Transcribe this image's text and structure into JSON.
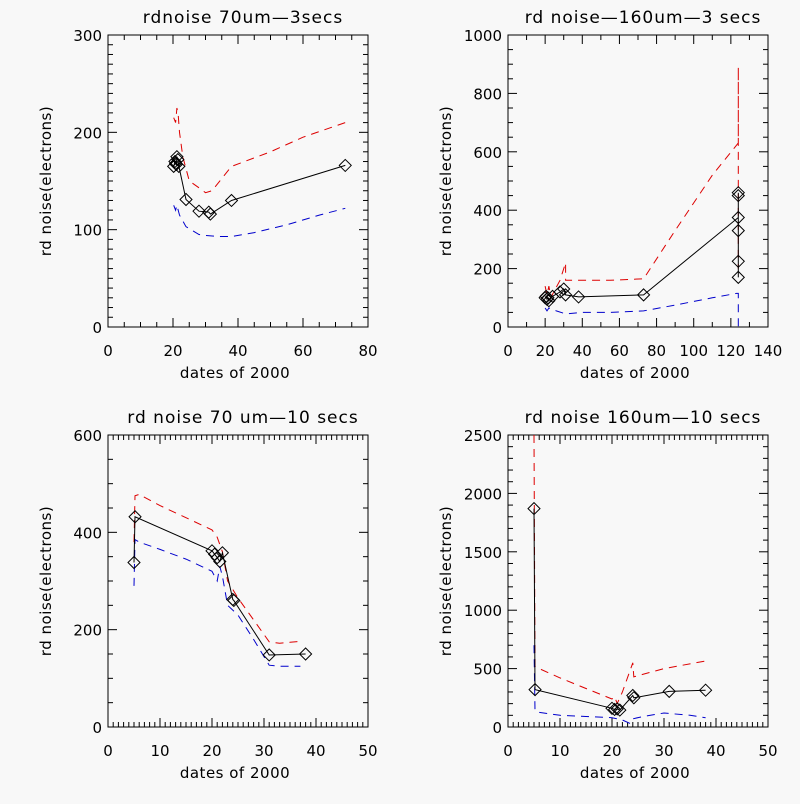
{
  "figure": {
    "background": "#f8f8f8",
    "colors": {
      "measured": "#000000",
      "upper": "#dd0000",
      "lower": "#0000cc"
    }
  },
  "chart_data": [
    {
      "type": "line",
      "title": "rdnoise 70um—3secs",
      "xlabel": "dates of 2000",
      "ylabel": "rd noise(electrons)",
      "xlim": [
        0,
        80
      ],
      "ylim": [
        0,
        300
      ],
      "xticks": [
        0,
        20,
        40,
        60,
        80
      ],
      "xtick_labels": [
        "0",
        "20",
        "40",
        "60",
        "80"
      ],
      "yticks": [
        0,
        100,
        200,
        300
      ],
      "ytick_labels": [
        "0",
        "100",
        "200",
        "300"
      ],
      "x_minor": 4,
      "y_minor": 10,
      "grid": false,
      "legend": "none",
      "series": [
        {
          "name": "measured",
          "style": "solid-diamond",
          "x": [
            20.2,
            20.6,
            20.8,
            21.0,
            21.2,
            21.5,
            21.8,
            24.0,
            28.0,
            31.0,
            31.5,
            38.0,
            73.0
          ],
          "y": [
            165,
            170,
            168,
            167,
            175,
            172,
            165,
            131,
            119,
            118,
            116,
            130,
            166
          ]
        },
        {
          "name": "upper",
          "style": "dashed",
          "x": [
            20.2,
            20.8,
            21.2,
            21.6,
            22.0,
            23.0,
            25.0,
            28.0,
            30.0,
            32.0,
            38.0,
            50.0,
            60.0,
            73.0
          ],
          "y": [
            215,
            210,
            225,
            218,
            200,
            175,
            150,
            143,
            138,
            140,
            165,
            180,
            195,
            210
          ]
        },
        {
          "name": "lower",
          "style": "dashed",
          "x": [
            20.2,
            20.8,
            21.2,
            22.0,
            24.0,
            28.0,
            30.0,
            34.0,
            38.0,
            45.0,
            55.0,
            65.0,
            73.0
          ],
          "y": [
            125,
            120,
            125,
            115,
            103,
            95,
            94,
            93,
            93,
            97,
            105,
            115,
            122
          ]
        }
      ]
    },
    {
      "type": "line",
      "title": "rd noise—160um—3 secs",
      "xlabel": "dates of 2000",
      "ylabel": "rd noise(electrons)",
      "xlim": [
        0,
        140
      ],
      "ylim": [
        0,
        1000
      ],
      "xticks": [
        0,
        20,
        40,
        60,
        80,
        100,
        120,
        140
      ],
      "xtick_labels": [
        "0",
        "20",
        "40",
        "60",
        "80",
        "100",
        "120",
        "140"
      ],
      "yticks": [
        0,
        200,
        400,
        600,
        800,
        1000
      ],
      "ytick_labels": [
        "0",
        "200",
        "400",
        "600",
        "800",
        "1000"
      ],
      "x_minor": 2,
      "y_minor": 4,
      "grid": false,
      "legend": "none",
      "series": [
        {
          "name": "measured",
          "style": "solid-diamond",
          "x": [
            20.0,
            20.5,
            21.0,
            21.5,
            22.0,
            24.0,
            28.0,
            30.0,
            31.0,
            38.0,
            73.0,
            124.0,
            124.0,
            124.0,
            124.0,
            124.0,
            124.0
          ],
          "y": [
            100,
            105,
            95,
            100,
            90,
            105,
            120,
            130,
            110,
            103,
            110,
            375,
            330,
            460,
            450,
            225,
            170
          ]
        },
        {
          "name": "upper",
          "style": "dashed",
          "x": [
            20.0,
            21.0,
            22.0,
            23.0,
            28.0,
            31.0,
            31.0,
            40.0,
            55.0,
            73.0,
            90.0,
            110.0,
            124.0,
            124.0,
            124.0
          ],
          "y": [
            140,
            110,
            140,
            100,
            160,
            220,
            160,
            160,
            160,
            165,
            330,
            520,
            630,
            890,
            200
          ]
        },
        {
          "name": "lower",
          "style": "dashed",
          "x": [
            20.0,
            21.0,
            22.0,
            26.0,
            31.0,
            40.0,
            55.0,
            73.0,
            90.0,
            110.0,
            123.0,
            124.0,
            124.0
          ],
          "y": [
            65,
            55,
            65,
            55,
            45,
            50,
            50,
            55,
            75,
            100,
            115,
            115,
            0
          ]
        }
      ]
    },
    {
      "type": "line",
      "title": "rd noise 70 um—10 secs",
      "xlabel": "dates of 2000",
      "ylabel": "rd noise(electrons)",
      "xlim": [
        0,
        50
      ],
      "ylim": [
        0,
        600
      ],
      "xticks": [
        0,
        10,
        20,
        30,
        40,
        50
      ],
      "xtick_labels": [
        "0",
        "10",
        "20",
        "30",
        "40",
        "50"
      ],
      "yticks": [
        0,
        200,
        400,
        600
      ],
      "ytick_labels": [
        "0",
        "200",
        "400",
        "600"
      ],
      "x_minor": 10,
      "y_minor": 4,
      "grid": false,
      "legend": "none",
      "series": [
        {
          "name": "measured",
          "style": "solid-diamond",
          "x": [
            5.0,
            5.2,
            20.0,
            20.5,
            21.0,
            21.5,
            22.0,
            24.0,
            24.2,
            31.0,
            38.0
          ],
          "y": [
            338,
            432,
            362,
            355,
            348,
            340,
            358,
            262,
            260,
            148,
            150
          ]
        },
        {
          "name": "upper",
          "style": "dashed",
          "x": [
            5.0,
            5.2,
            6.0,
            10.0,
            15.0,
            20.0,
            21.0,
            22.0,
            23.0,
            25.0,
            28.0,
            31.0,
            33.0,
            35.0,
            37.0
          ],
          "y": [
            380,
            475,
            478,
            455,
            430,
            405,
            390,
            360,
            300,
            265,
            220,
            175,
            172,
            174,
            176
          ]
        },
        {
          "name": "lower",
          "style": "dashed",
          "x": [
            5.0,
            5.2,
            6.0,
            10.0,
            15.0,
            20.0,
            21.0,
            21.5,
            22.0,
            23.0,
            25.0,
            28.0,
            31.0,
            33.0,
            37.0
          ],
          "y": [
            290,
            385,
            380,
            365,
            345,
            320,
            300,
            330,
            310,
            250,
            230,
            180,
            127,
            125,
            125
          ]
        }
      ]
    },
    {
      "type": "line",
      "title": "rd noise 160um—10 secs",
      "xlabel": "dates of 2000",
      "ylabel": "rd noise(electrons)",
      "xlim": [
        0,
        50
      ],
      "ylim": [
        0,
        2500
      ],
      "xticks": [
        0,
        10,
        20,
        30,
        40,
        50
      ],
      "xtick_labels": [
        "0",
        "10",
        "20",
        "30",
        "40",
        "50"
      ],
      "yticks": [
        0,
        500,
        1000,
        1500,
        2000,
        2500
      ],
      "ytick_labels": [
        "0",
        "500",
        "1000",
        "1500",
        "2000",
        "2500"
      ],
      "x_minor": 10,
      "y_minor": 5,
      "grid": false,
      "legend": "none",
      "series": [
        {
          "name": "measured",
          "style": "solid-diamond",
          "x": [
            5.0,
            5.2,
            20.0,
            20.5,
            21.0,
            21.5,
            24.0,
            24.2,
            31.0,
            38.0
          ],
          "y": [
            1870,
            320,
            160,
            150,
            155,
            145,
            270,
            250,
            305,
            315
          ]
        },
        {
          "name": "upper",
          "style": "dashed",
          "x": [
            5.0,
            5.2,
            6.0,
            10.0,
            15.0,
            20.0,
            20.5,
            21.0,
            22.0,
            24.0,
            24.2,
            30.0,
            38.0
          ],
          "y": [
            2500,
            520,
            500,
            420,
            330,
            240,
            260,
            200,
            300,
            550,
            430,
            500,
            565
          ]
        },
        {
          "name": "lower",
          "style": "dashed",
          "x": [
            5.0,
            5.2,
            6.0,
            10.0,
            15.0,
            20.0,
            22.0,
            23.5,
            24.0,
            26.0,
            30.0,
            35.0,
            38.0
          ],
          "y": [
            700,
            140,
            125,
            100,
            90,
            80,
            60,
            30,
            70,
            90,
            120,
            100,
            80
          ]
        }
      ]
    }
  ]
}
